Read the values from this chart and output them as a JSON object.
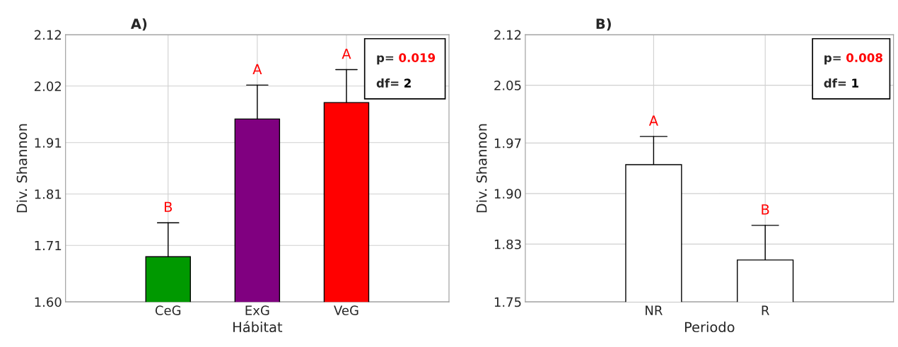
{
  "chart_data": [
    {
      "type": "bar",
      "title": "A)",
      "xlabel": "Hábitat",
      "ylabel": "Div. Shannon",
      "categories": [
        "CeG",
        "ExG",
        "VeG"
      ],
      "values": [
        1.688,
        1.956,
        1.988
      ],
      "colors": [
        "#009900",
        "#800080",
        "#ff0000"
      ],
      "errors": [
        [
          1.688,
          1.754
        ],
        [
          1.956,
          2.022
        ],
        [
          1.988,
          2.052
        ]
      ],
      "ylim": [
        1.6,
        2.12
      ],
      "yticks": [
        {
          "value": 1.6,
          "label": "1.60"
        },
        1.71,
        1.81,
        1.91,
        2.02,
        2.12
      ],
      "grid": true,
      "annotations": [
        "B",
        "A",
        "A",
        "p= 0.019",
        "df= 2"
      ]
    },
    {
      "type": "bar",
      "title": "B)",
      "xlabel": "Periodo",
      "ylabel": "Div. Shannon",
      "categories": [
        "NR",
        "R"
      ],
      "values": [
        1.94,
        1.808
      ],
      "colors": [
        "#ffffff",
        "#ffffff"
      ],
      "errors": [
        [
          1.94,
          1.979
        ],
        [
          1.808,
          1.856
        ]
      ],
      "ylim": [
        1.75,
        2.12
      ],
      "yticks": [
        1.75,
        1.83,
        {
          "value": 1.9,
          "label": "1.90"
        },
        1.97,
        2.05,
        2.12
      ],
      "grid": true,
      "annotations": [
        "A",
        "B",
        "p= 0.008",
        "df= 1"
      ]
    }
  ]
}
